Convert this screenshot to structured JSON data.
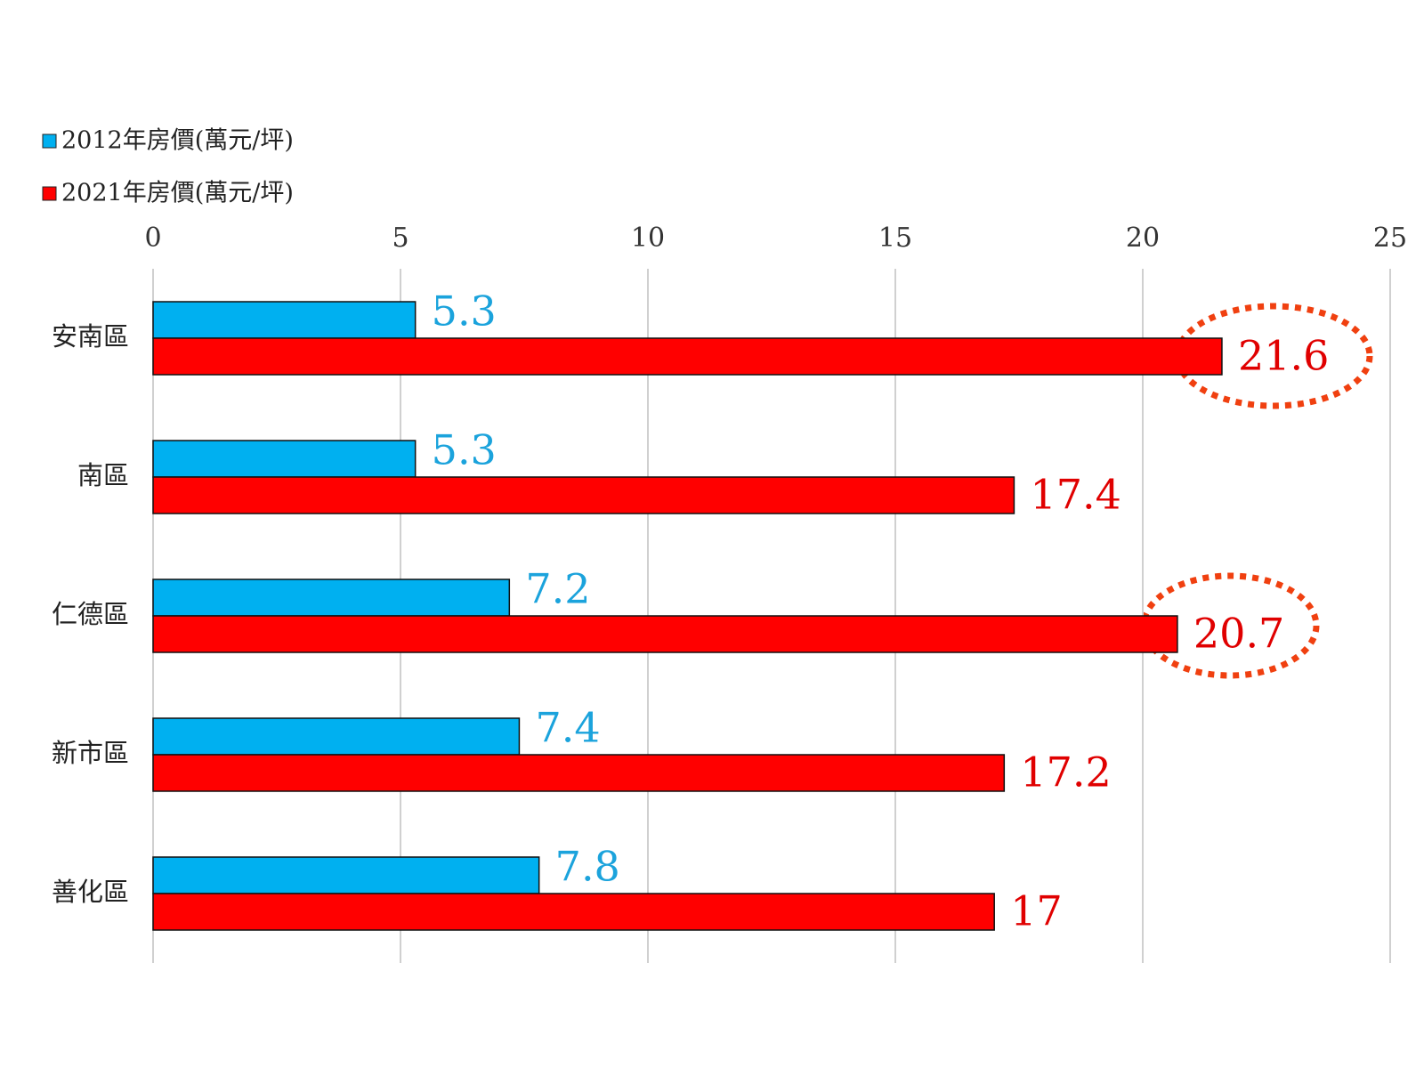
{
  "chart_data": {
    "type": "barh",
    "categories": [
      "安南區",
      "南區",
      "仁德區",
      "新市區",
      "善化區"
    ],
    "series": [
      {
        "name": "2012年房價(萬元/坪)",
        "color": "#00b0f0",
        "values": [
          5.3,
          5.3,
          7.2,
          7.4,
          7.8
        ]
      },
      {
        "name": "2021年房價(萬元/坪)",
        "color": "#ff0000",
        "values": [
          21.6,
          17.4,
          20.7,
          17.2,
          17
        ]
      }
    ],
    "xlim": [
      0,
      25
    ],
    "xticks": [
      0,
      5,
      10,
      15,
      20,
      25
    ],
    "grid": true
  }
}
